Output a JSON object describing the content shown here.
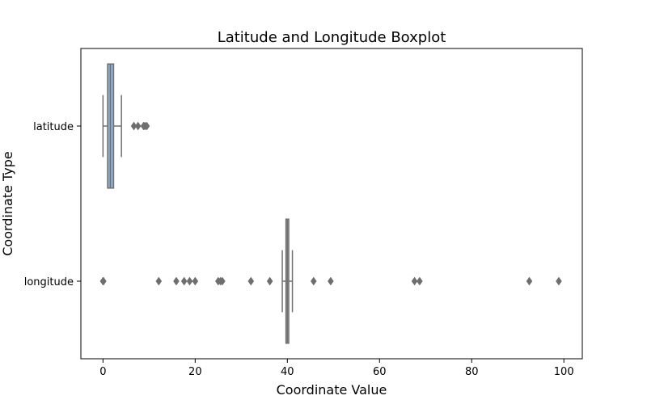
{
  "chart_data": {
    "type": "boxplot",
    "orientation": "horizontal",
    "title": "Latitude and Longitude Boxplot",
    "xlabel": "Coordinate Value",
    "ylabel": "Coordinate Type",
    "xlim": [
      -4.8,
      104.0
    ],
    "x_ticks": [
      0,
      20,
      40,
      60,
      80,
      100
    ],
    "x_tick_labels": [
      "0",
      "20",
      "40",
      "60",
      "80",
      "100"
    ],
    "categories": [
      "latitude",
      "longitude"
    ],
    "grid": false,
    "series": [
      {
        "name": "latitude",
        "color": "#8fb0d0",
        "whisker_low": 0.0,
        "q1": 1.0,
        "median": 1.6,
        "q3": 2.3,
        "whisker_high": 4.0,
        "outliers": [
          6.7,
          7.6,
          8.8,
          9.1,
          9.5
        ]
      },
      {
        "name": "longitude",
        "color": "#9dbfa8",
        "whisker_low": 38.9,
        "q1": 39.7,
        "median": 40.0,
        "q3": 40.3,
        "whisker_high": 41.1,
        "outliers": [
          0.0,
          0.1,
          12.1,
          15.9,
          17.6,
          18.8,
          20.0,
          25.0,
          25.5,
          25.9,
          32.1,
          36.2,
          45.7,
          49.4,
          67.6,
          68.7,
          92.5,
          98.9
        ]
      }
    ],
    "colors": {
      "lines": "#707070",
      "fliers": "#6e6e6e",
      "axes": "#000000"
    }
  }
}
